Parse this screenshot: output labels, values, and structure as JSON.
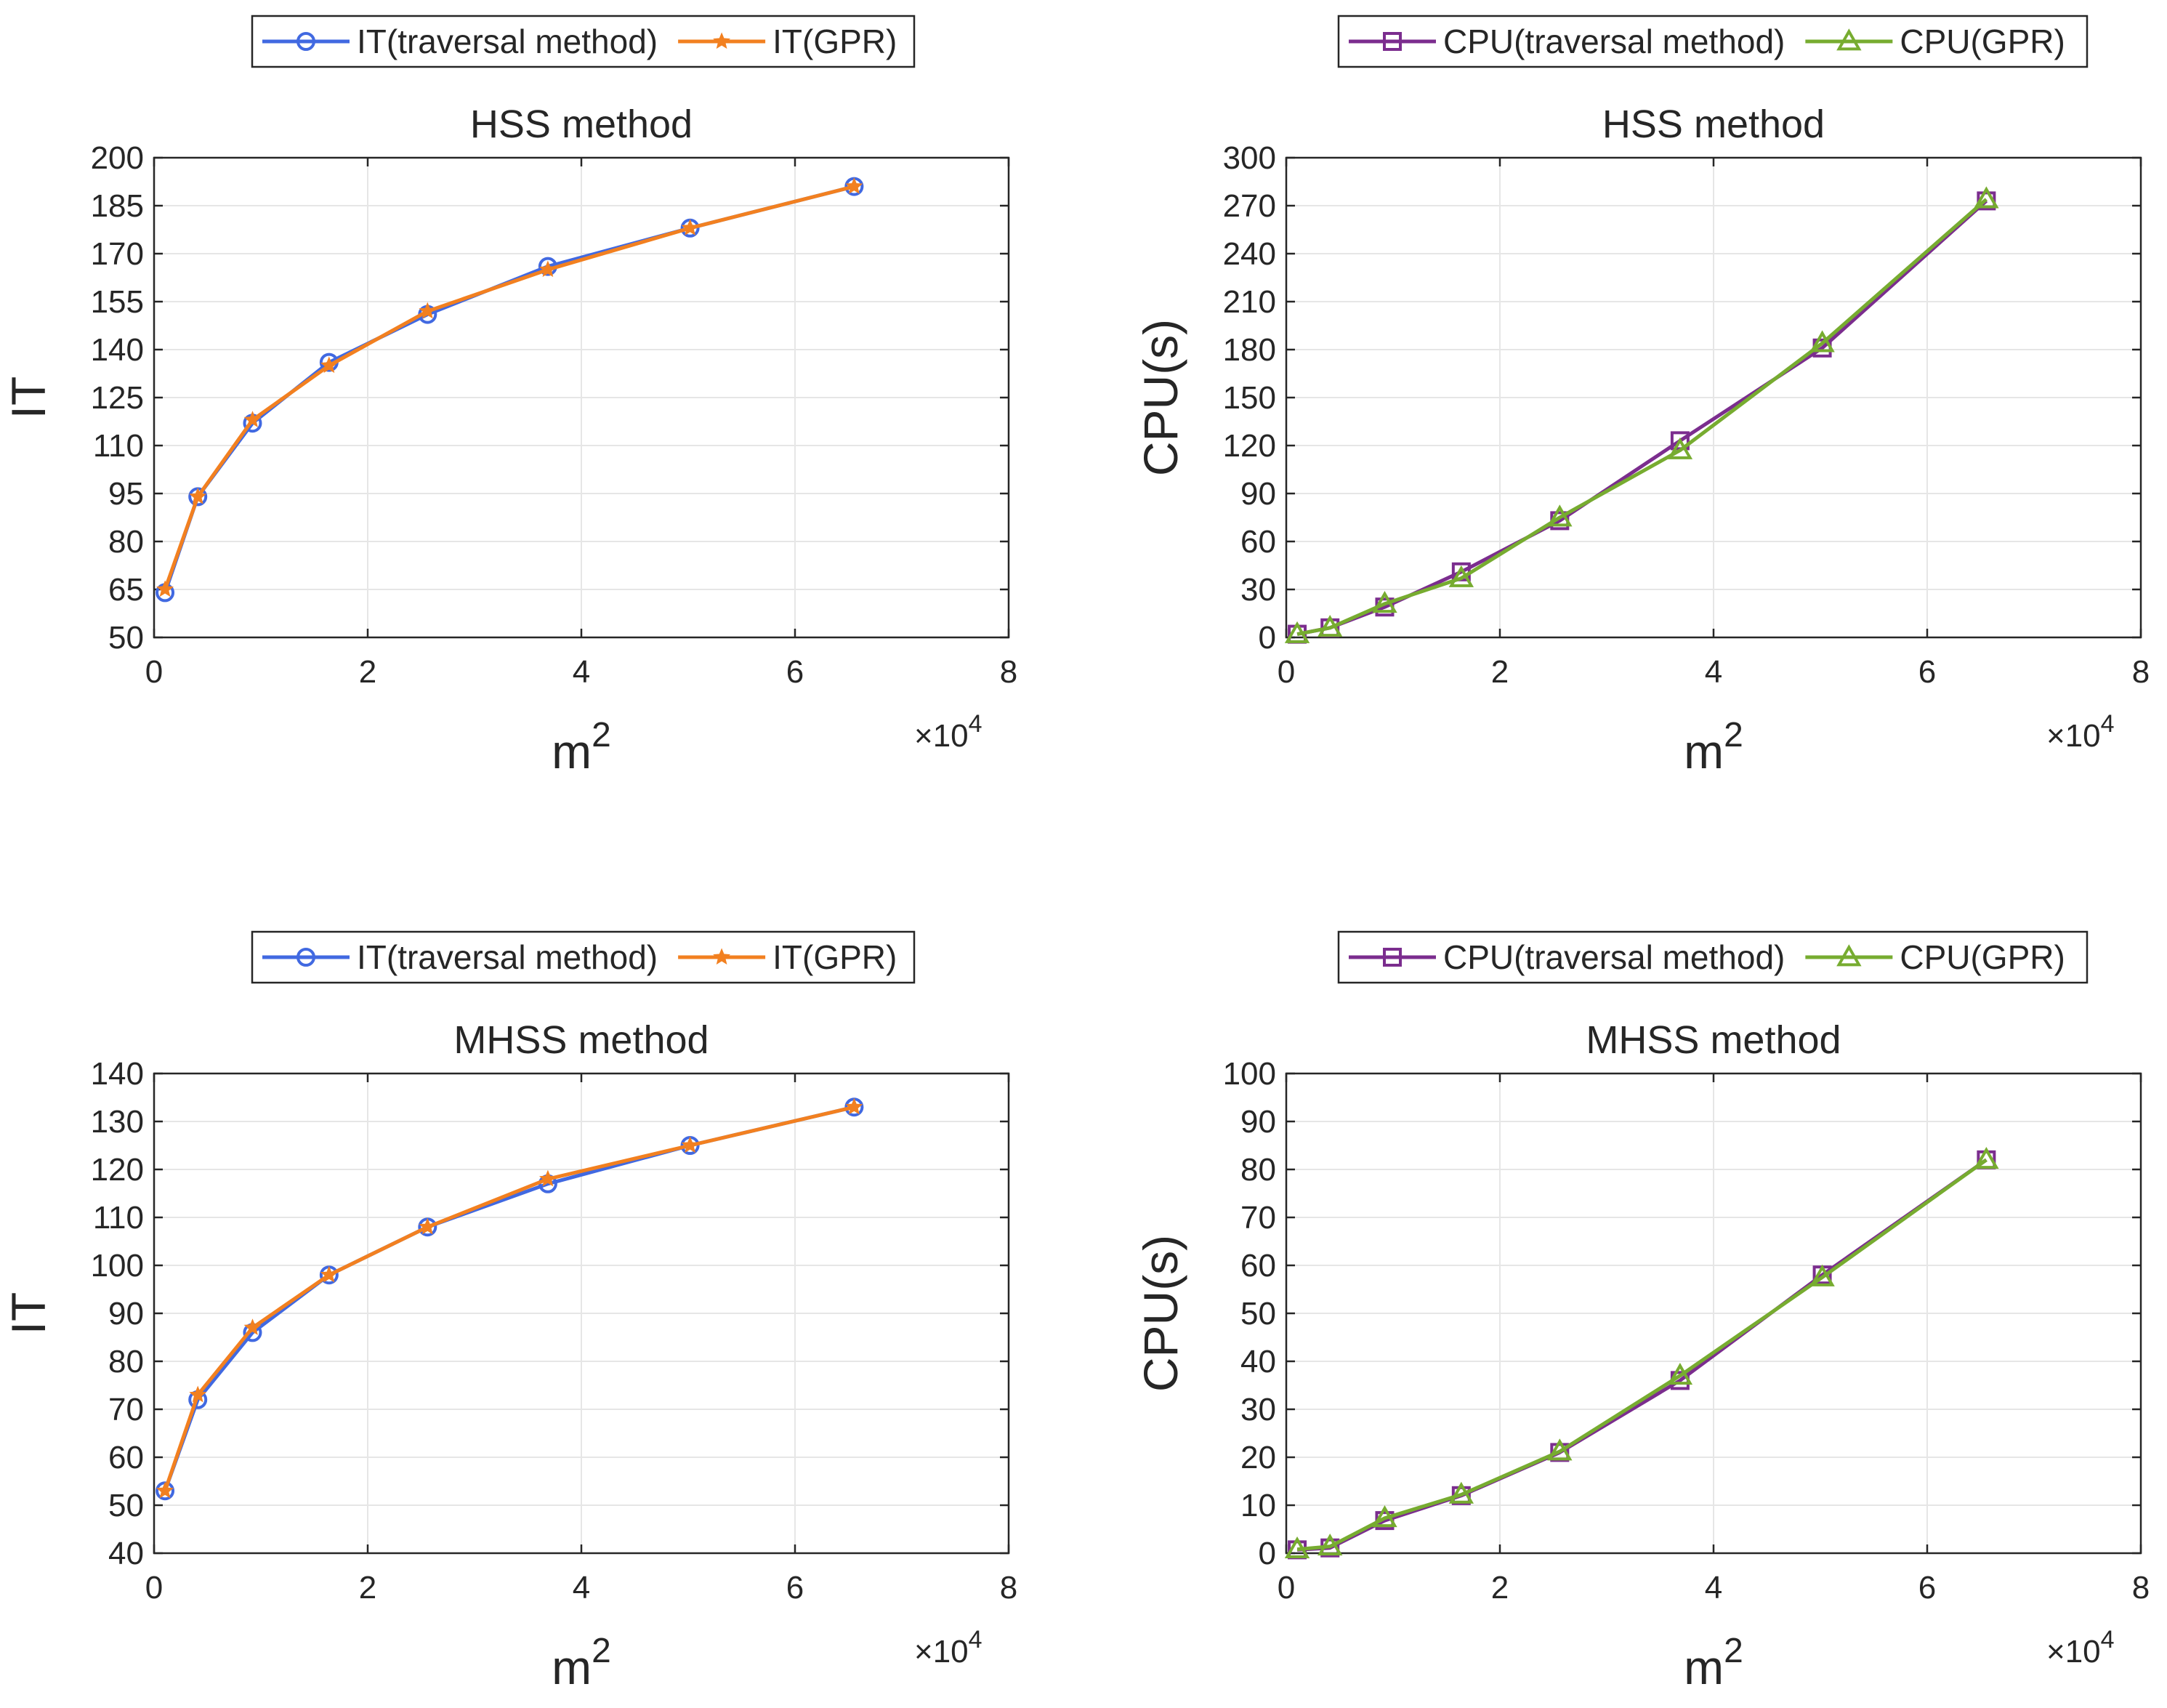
{
  "colors": {
    "it_traversal": "#4169e1",
    "it_gpr": "#f28020",
    "cpu_traversal": "#7b2d8e",
    "cpu_gpr": "#77ac30",
    "grid": "#e6e6e6",
    "axis": "#262626"
  },
  "chart_data": [
    {
      "type": "line",
      "title": "HSS method",
      "xlabel": "m",
      "xlabel_sup": "2",
      "ylabel": "IT",
      "x_multiplier": "×10",
      "x_multiplier_exp": "4",
      "xlim": [
        0,
        8
      ],
      "ylim": [
        50,
        200
      ],
      "xticks": [
        0,
        2,
        4,
        6,
        8
      ],
      "yticks": [
        50,
        65,
        80,
        95,
        110,
        125,
        140,
        155,
        170,
        185,
        200
      ],
      "grid": true,
      "legend_position": "top-center",
      "x": [
        0.1024,
        0.4096,
        0.9216,
        1.6384,
        2.56,
        3.6864,
        5.0176,
        6.5536
      ],
      "series": [
        {
          "name": "IT(traversal method)",
          "marker": "circle",
          "values": [
            64,
            94,
            117,
            136,
            151,
            166,
            178,
            191
          ]
        },
        {
          "name": "IT(GPR)",
          "marker": "star",
          "values": [
            65,
            94,
            118,
            135,
            152,
            165,
            178,
            191
          ]
        }
      ]
    },
    {
      "type": "line",
      "title": "HSS method",
      "xlabel": "m",
      "xlabel_sup": "2",
      "ylabel": "CPU(s)",
      "x_multiplier": "×10",
      "x_multiplier_exp": "4",
      "xlim": [
        0,
        8
      ],
      "ylim": [
        0,
        300
      ],
      "xticks": [
        0,
        2,
        4,
        6,
        8
      ],
      "yticks": [
        0,
        30,
        60,
        90,
        120,
        150,
        180,
        210,
        240,
        270,
        300
      ],
      "grid": true,
      "legend_position": "top-center",
      "x": [
        0.1024,
        0.4096,
        0.9216,
        1.6384,
        2.56,
        3.6864,
        5.0176,
        6.5536
      ],
      "series": [
        {
          "name": "CPU(traversal method)",
          "marker": "square",
          "values": [
            2,
            6,
            19,
            41,
            73,
            123,
            181,
            273
          ]
        },
        {
          "name": "CPU(GPR)",
          "marker": "triangle",
          "values": [
            2,
            6,
            21,
            37,
            75,
            117,
            184,
            274
          ]
        }
      ]
    },
    {
      "type": "line",
      "title": "MHSS method",
      "xlabel": "m",
      "xlabel_sup": "2",
      "ylabel": "IT",
      "x_multiplier": "×10",
      "x_multiplier_exp": "4",
      "xlim": [
        0,
        8
      ],
      "ylim": [
        40,
        140
      ],
      "xticks": [
        0,
        2,
        4,
        6,
        8
      ],
      "yticks": [
        40,
        50,
        60,
        70,
        80,
        90,
        100,
        110,
        120,
        130,
        140
      ],
      "grid": true,
      "legend_position": "top-center",
      "x": [
        0.1024,
        0.4096,
        0.9216,
        1.6384,
        2.56,
        3.6864,
        5.0176,
        6.5536
      ],
      "series": [
        {
          "name": "IT(traversal method)",
          "marker": "circle",
          "values": [
            53,
            72,
            86,
            98,
            108,
            117,
            125,
            133
          ]
        },
        {
          "name": "IT(GPR)",
          "marker": "star",
          "values": [
            53,
            73,
            87,
            98,
            108,
            118,
            125,
            133
          ]
        }
      ]
    },
    {
      "type": "line",
      "title": "MHSS method",
      "xlabel": "m",
      "xlabel_sup": "2",
      "ylabel": "CPU(s)",
      "x_multiplier": "×10",
      "x_multiplier_exp": "4",
      "xlim": [
        0,
        8
      ],
      "ylim": [
        0,
        100
      ],
      "xticks": [
        0,
        2,
        4,
        6,
        8
      ],
      "yticks": [
        0,
        10,
        20,
        30,
        40,
        50,
        60,
        70,
        80,
        90,
        100
      ],
      "grid": true,
      "legend_position": "top-center",
      "x": [
        0.1024,
        0.4096,
        0.9216,
        1.6384,
        2.56,
        3.6864,
        5.0176,
        6.5536
      ],
      "series": [
        {
          "name": "CPU(traversal method)",
          "marker": "square",
          "values": [
            0.7,
            1.1,
            6.8,
            12,
            21,
            36,
            58,
            82
          ]
        },
        {
          "name": "CPU(GPR)",
          "marker": "triangle",
          "values": [
            0.8,
            1.4,
            7.3,
            12.2,
            21.2,
            37,
            57.5,
            82
          ]
        }
      ]
    }
  ]
}
